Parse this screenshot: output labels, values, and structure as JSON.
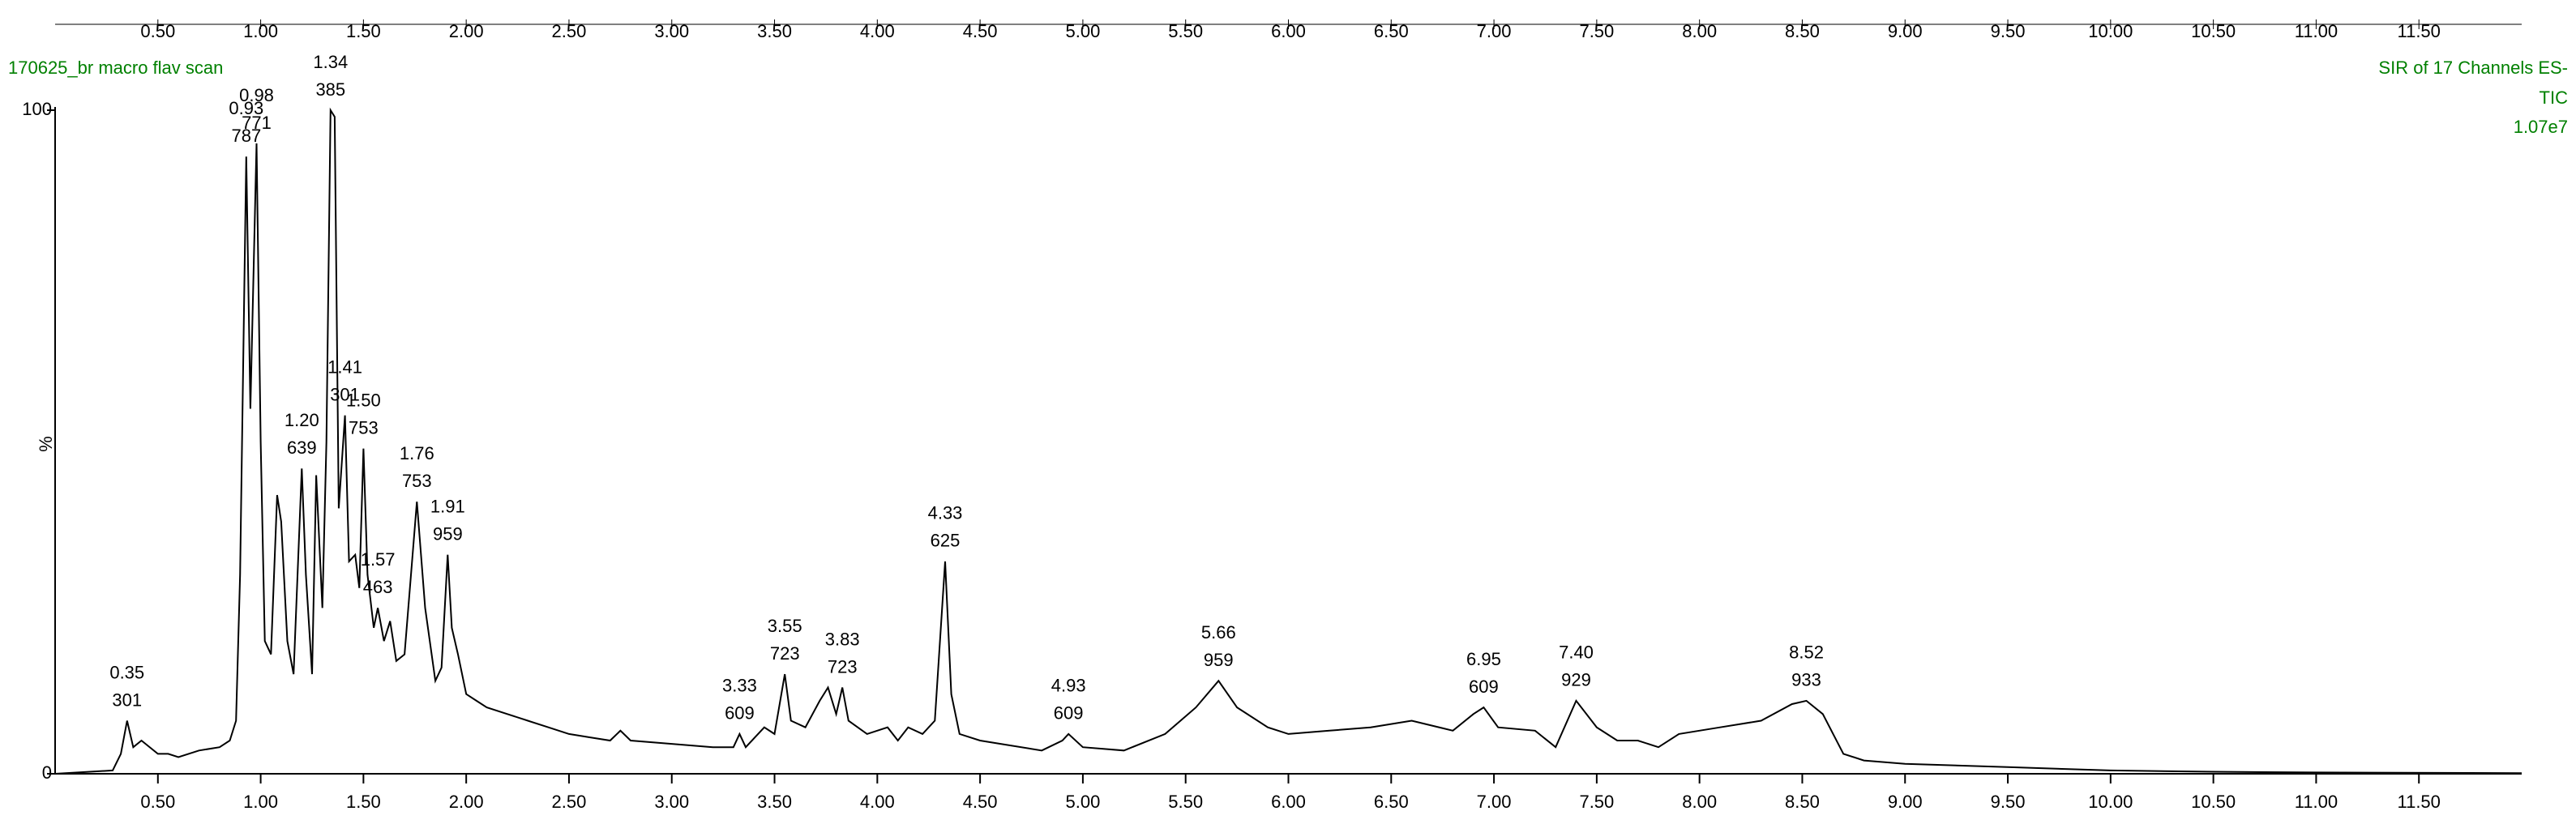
{
  "chart_data": {
    "type": "line",
    "title": "170625_br macro  flav scan",
    "info": [
      "SIR of 17 Channels ES-",
      "TIC",
      "1.07e7"
    ],
    "y_label": "%",
    "x": [
      0.0,
      0.28,
      0.32,
      0.35,
      0.38,
      0.42,
      0.5,
      0.55,
      0.6,
      0.7,
      0.8,
      0.85,
      0.88,
      0.9,
      0.93,
      0.95,
      0.98,
      1.0,
      1.02,
      1.05,
      1.08,
      1.1,
      1.13,
      1.16,
      1.2,
      1.22,
      1.25,
      1.27,
      1.3,
      1.32,
      1.34,
      1.36,
      1.38,
      1.41,
      1.43,
      1.46,
      1.48,
      1.5,
      1.52,
      1.55,
      1.57,
      1.6,
      1.63,
      1.66,
      1.7,
      1.76,
      1.8,
      1.85,
      1.88,
      1.91,
      1.93,
      1.96,
      2.0,
      2.05,
      2.1,
      2.2,
      2.3,
      2.4,
      2.5,
      2.6,
      2.7,
      2.75,
      2.8,
      3.0,
      3.2,
      3.3,
      3.33,
      3.36,
      3.45,
      3.5,
      3.55,
      3.58,
      3.65,
      3.72,
      3.76,
      3.8,
      3.83,
      3.86,
      3.95,
      4.05,
      4.1,
      4.15,
      4.22,
      4.28,
      4.33,
      4.36,
      4.4,
      4.5,
      4.6,
      4.8,
      4.9,
      4.93,
      5.0,
      5.2,
      5.4,
      5.55,
      5.66,
      5.75,
      5.9,
      6.0,
      6.2,
      6.4,
      6.6,
      6.8,
      6.9,
      6.95,
      7.02,
      7.2,
      7.3,
      7.4,
      7.5,
      7.6,
      7.7,
      7.8,
      7.9,
      8.1,
      8.3,
      8.45,
      8.52,
      8.6,
      8.7,
      8.8,
      9.0,
      9.5,
      10.0,
      10.5,
      11.0,
      12.0
    ],
    "values": [
      0,
      0.5,
      3,
      8,
      4,
      5,
      3,
      3,
      2.5,
      3.5,
      4,
      5,
      8,
      30,
      93,
      55,
      95,
      50,
      20,
      18,
      42,
      38,
      20,
      15,
      46,
      30,
      15,
      45,
      25,
      50,
      100,
      99,
      40,
      54,
      32,
      33,
      28,
      49,
      30,
      22,
      25,
      20,
      23,
      17,
      18,
      41,
      25,
      14,
      16,
      33,
      22,
      18,
      12,
      11,
      10,
      9,
      8,
      7,
      6,
      5.5,
      5,
      6.5,
      5,
      4.5,
      4,
      4,
      6,
      4,
      7,
      6,
      15,
      8,
      7,
      11,
      13,
      9,
      13,
      8,
      6,
      7,
      5,
      7,
      6,
      8,
      32,
      12,
      6,
      5,
      4.5,
      3.5,
      5,
      6,
      4,
      3.5,
      6,
      10,
      14,
      10,
      7,
      6,
      6.5,
      7,
      8,
      6.5,
      9,
      10,
      7,
      6.5,
      4,
      11,
      7,
      5,
      5,
      4,
      6,
      7,
      8,
      10.5,
      11,
      9,
      3,
      2,
      1.5,
      1,
      0.5,
      0.3,
      0.2,
      0.1
    ],
    "color": "#000000",
    "peaks": [
      {
        "time": 0.35,
        "mass": 301,
        "intensity": 8
      },
      {
        "time": 0.93,
        "mass": 787,
        "intensity": 93
      },
      {
        "time": 0.98,
        "mass": 771,
        "intensity": 95
      },
      {
        "time": {
          "value": 1.2,
          "label": "1.20"
        },
        "mass": 639,
        "intensity": 46
      },
      {
        "time": 1.34,
        "mass": 385,
        "intensity": 100
      },
      {
        "time": 1.41,
        "mass": 301,
        "intensity": 54
      },
      {
        "time": {
          "value": 1.5,
          "label": "1.50"
        },
        "mass": 753,
        "intensity": 49
      },
      {
        "time": 1.57,
        "mass": 463,
        "intensity": 25
      },
      {
        "time": 1.76,
        "mass": 753,
        "intensity": 41
      },
      {
        "time": 1.91,
        "mass": 959,
        "intensity": 33
      },
      {
        "time": 3.33,
        "mass": 609,
        "intensity": 6
      },
      {
        "time": 3.55,
        "mass": 723,
        "intensity": 15
      },
      {
        "time": 3.83,
        "mass": 723,
        "intensity": 13
      },
      {
        "time": 4.33,
        "mass": 625,
        "intensity": 32
      },
      {
        "time": 4.93,
        "mass": 609,
        "intensity": 6
      },
      {
        "time": 5.66,
        "mass": 959,
        "intensity": 14
      },
      {
        "time": 6.95,
        "mass": 609,
        "intensity": 10
      },
      {
        "time": {
          "value": 7.4,
          "label": "7.40"
        },
        "mass": 929,
        "intensity": 11
      },
      {
        "time": 8.52,
        "mass": 933,
        "intensity": 11
      }
    ],
    "xlim": [
      0,
      12
    ],
    "ylim": [
      0,
      100
    ],
    "xticks": [
      {
        "value": 0.5,
        "label": "0.50"
      },
      {
        "value": 1,
        "label": "1.00"
      },
      {
        "value": 1.5,
        "label": "1.50"
      },
      {
        "value": 2,
        "label": "2.00"
      },
      {
        "value": 2.5,
        "label": "2.50"
      },
      {
        "value": 3,
        "label": "3.00"
      },
      {
        "value": 3.5,
        "label": "3.50"
      },
      {
        "value": 4,
        "label": "4.00"
      },
      {
        "value": 4.5,
        "label": "4.50"
      },
      {
        "value": 5,
        "label": "5.00"
      },
      {
        "value": 5.5,
        "label": "5.50"
      },
      {
        "value": 6,
        "label": "6.00"
      },
      {
        "value": 6.5,
        "label": "6.50"
      },
      {
        "value": 7,
        "label": "7.00"
      },
      {
        "value": 7.5,
        "label": "7.50"
      },
      {
        "value": 8,
        "label": "8.00"
      },
      {
        "value": 8.5,
        "label": "8.50"
      },
      {
        "value": 9,
        "label": "9.00"
      },
      {
        "value": 9.5,
        "label": "9.50"
      },
      {
        "value": 10,
        "label": "10.00"
      },
      {
        "value": 10.5,
        "label": "10.50"
      },
      {
        "value": 11,
        "label": "11.00"
      },
      {
        "value": 11.5,
        "label": "11.50"
      }
    ],
    "yticks": [
      0,
      100
    ]
  }
}
